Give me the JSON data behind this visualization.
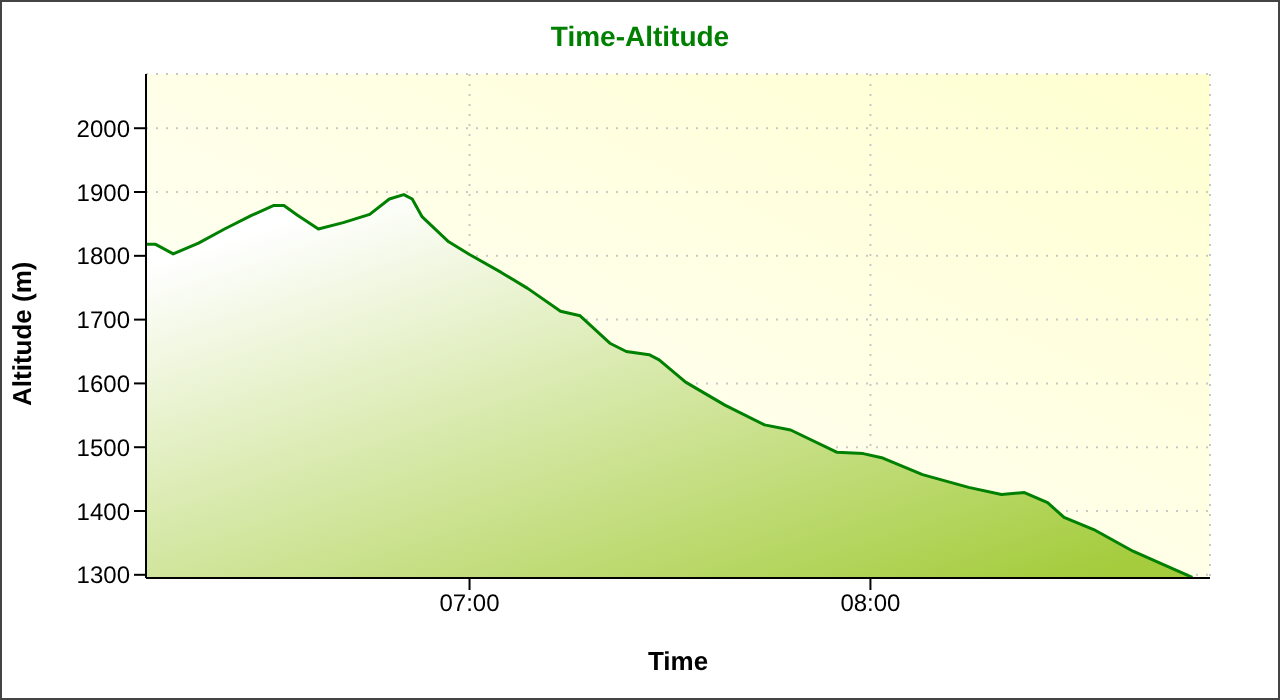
{
  "chart_data": {
    "type": "area",
    "title": "Time-Altitude",
    "xlabel": "Time",
    "ylabel": "Altitude (m)",
    "x": [
      6.193,
      6.217,
      6.261,
      6.324,
      6.389,
      6.455,
      6.512,
      6.537,
      6.57,
      6.623,
      6.685,
      6.751,
      6.8,
      6.836,
      6.857,
      6.882,
      6.948,
      7.0,
      7.079,
      7.145,
      7.227,
      7.276,
      7.35,
      7.391,
      7.448,
      7.473,
      7.539,
      7.637,
      7.736,
      7.801,
      7.917,
      7.982,
      8.031,
      8.13,
      8.245,
      8.327,
      8.384,
      8.442,
      8.483,
      8.557,
      8.655,
      8.738,
      8.803
    ],
    "series": [
      {
        "color": "#008000",
        "values": [
          1818,
          1818,
          1803,
          1820,
          1842,
          1863,
          1879,
          1879,
          1864,
          1842,
          1852,
          1865,
          1889,
          1896,
          1889,
          1861,
          1822,
          1802,
          1774,
          1749,
          1713,
          1706,
          1663,
          1650,
          1645,
          1637,
          1602,
          1566,
          1535,
          1527,
          1492,
          1490,
          1483,
          1457,
          1437,
          1426,
          1429,
          1413,
          1390,
          1371,
          1337,
          1314,
          1296
        ]
      }
    ],
    "xlim": [
      6.193,
      8.847
    ],
    "xticks": [
      {
        "value": 7,
        "label": "07:00"
      },
      {
        "value": 8,
        "label": "08:00"
      }
    ],
    "ylim": [
      1295,
      2085
    ],
    "yticks": [
      1300,
      1400,
      1500,
      1600,
      1700,
      1800,
      1900,
      2000
    ],
    "grid": true,
    "legend": false,
    "marker": "none",
    "line_style": "solid"
  }
}
